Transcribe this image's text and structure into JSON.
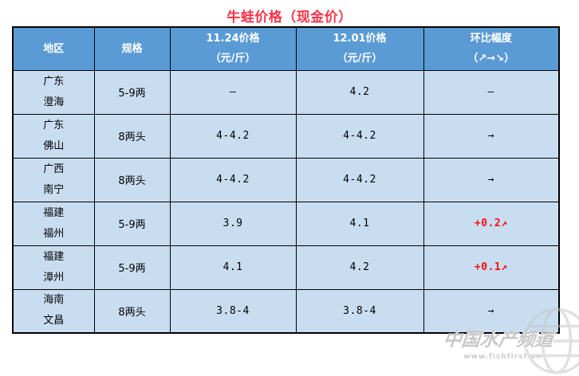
{
  "title": "牛蛙价格（现金价）",
  "colors": {
    "title_red": "#fb3347",
    "header_bg": "#5b9bd5",
    "body_bg": "#c9ddf1",
    "accent_red": "#f50f0f",
    "border": "#000000"
  },
  "table": {
    "headers": [
      {
        "line1": "地区",
        "line2": ""
      },
      {
        "line1": "规格",
        "line2": ""
      },
      {
        "line1": "11.24价格",
        "line2": "（元/斤）"
      },
      {
        "line1": "12.01价格",
        "line2": "（元/斤）"
      },
      {
        "line1": "环比幅度",
        "line2": "（↗→↘）"
      }
    ],
    "rows": [
      {
        "region_line1": "广东",
        "region_line2": "澄海",
        "spec": "5-9两",
        "price_1124": "—",
        "price_1201": "4.2",
        "change": "—",
        "change_color": "black"
      },
      {
        "region_line1": "广东",
        "region_line2": "佛山",
        "spec": "8两头",
        "price_1124": "4-4.2",
        "price_1201": "4-4.2",
        "change": "→",
        "change_color": "black"
      },
      {
        "region_line1": "广西",
        "region_line2": "南宁",
        "spec": "8两头",
        "price_1124": "4-4.2",
        "price_1201": "4-4.2",
        "change": "→",
        "change_color": "black"
      },
      {
        "region_line1": "福建",
        "region_line2": "福州",
        "spec": "5-9两",
        "price_1124": "3.9",
        "price_1201": "4.1",
        "change": "+0.2↗",
        "change_color": "red"
      },
      {
        "region_line1": "福建",
        "region_line2": "漳州",
        "spec": "5-9两",
        "price_1124": "4.1",
        "price_1201": "4.2",
        "change": "+0.1↗",
        "change_color": "red"
      },
      {
        "region_line1": "海南",
        "region_line2": "文昌",
        "spec": "8两头",
        "price_1124": "3.8-4",
        "price_1201": "3.8-4",
        "change": "→",
        "change_color": "black"
      }
    ]
  },
  "watermark": {
    "brand": "中国水产频道",
    "url": "www.fishfirst.cn",
    "icon": "globe-icon"
  },
  "chart_data": {
    "type": "table",
    "title": "牛蛙价格（现金价）",
    "columns": [
      "地区",
      "规格",
      "11.24价格（元/斤）",
      "12.01价格（元/斤）",
      "环比幅度（↗→↘）"
    ],
    "rows": [
      [
        "广东澄海",
        "5-9两",
        "—",
        "4.2",
        "—"
      ],
      [
        "广东佛山",
        "8两头",
        "4-4.2",
        "4-4.2",
        "→"
      ],
      [
        "广西南宁",
        "8两头",
        "4-4.2",
        "4-4.2",
        "→"
      ],
      [
        "福建福州",
        "5-9两",
        "3.9",
        "4.1",
        "+0.2↗"
      ],
      [
        "福建漳州",
        "5-9两",
        "4.1",
        "4.2",
        "+0.1↗"
      ],
      [
        "海南文昌",
        "8两头",
        "3.8-4",
        "3.8-4",
        "→"
      ]
    ]
  }
}
